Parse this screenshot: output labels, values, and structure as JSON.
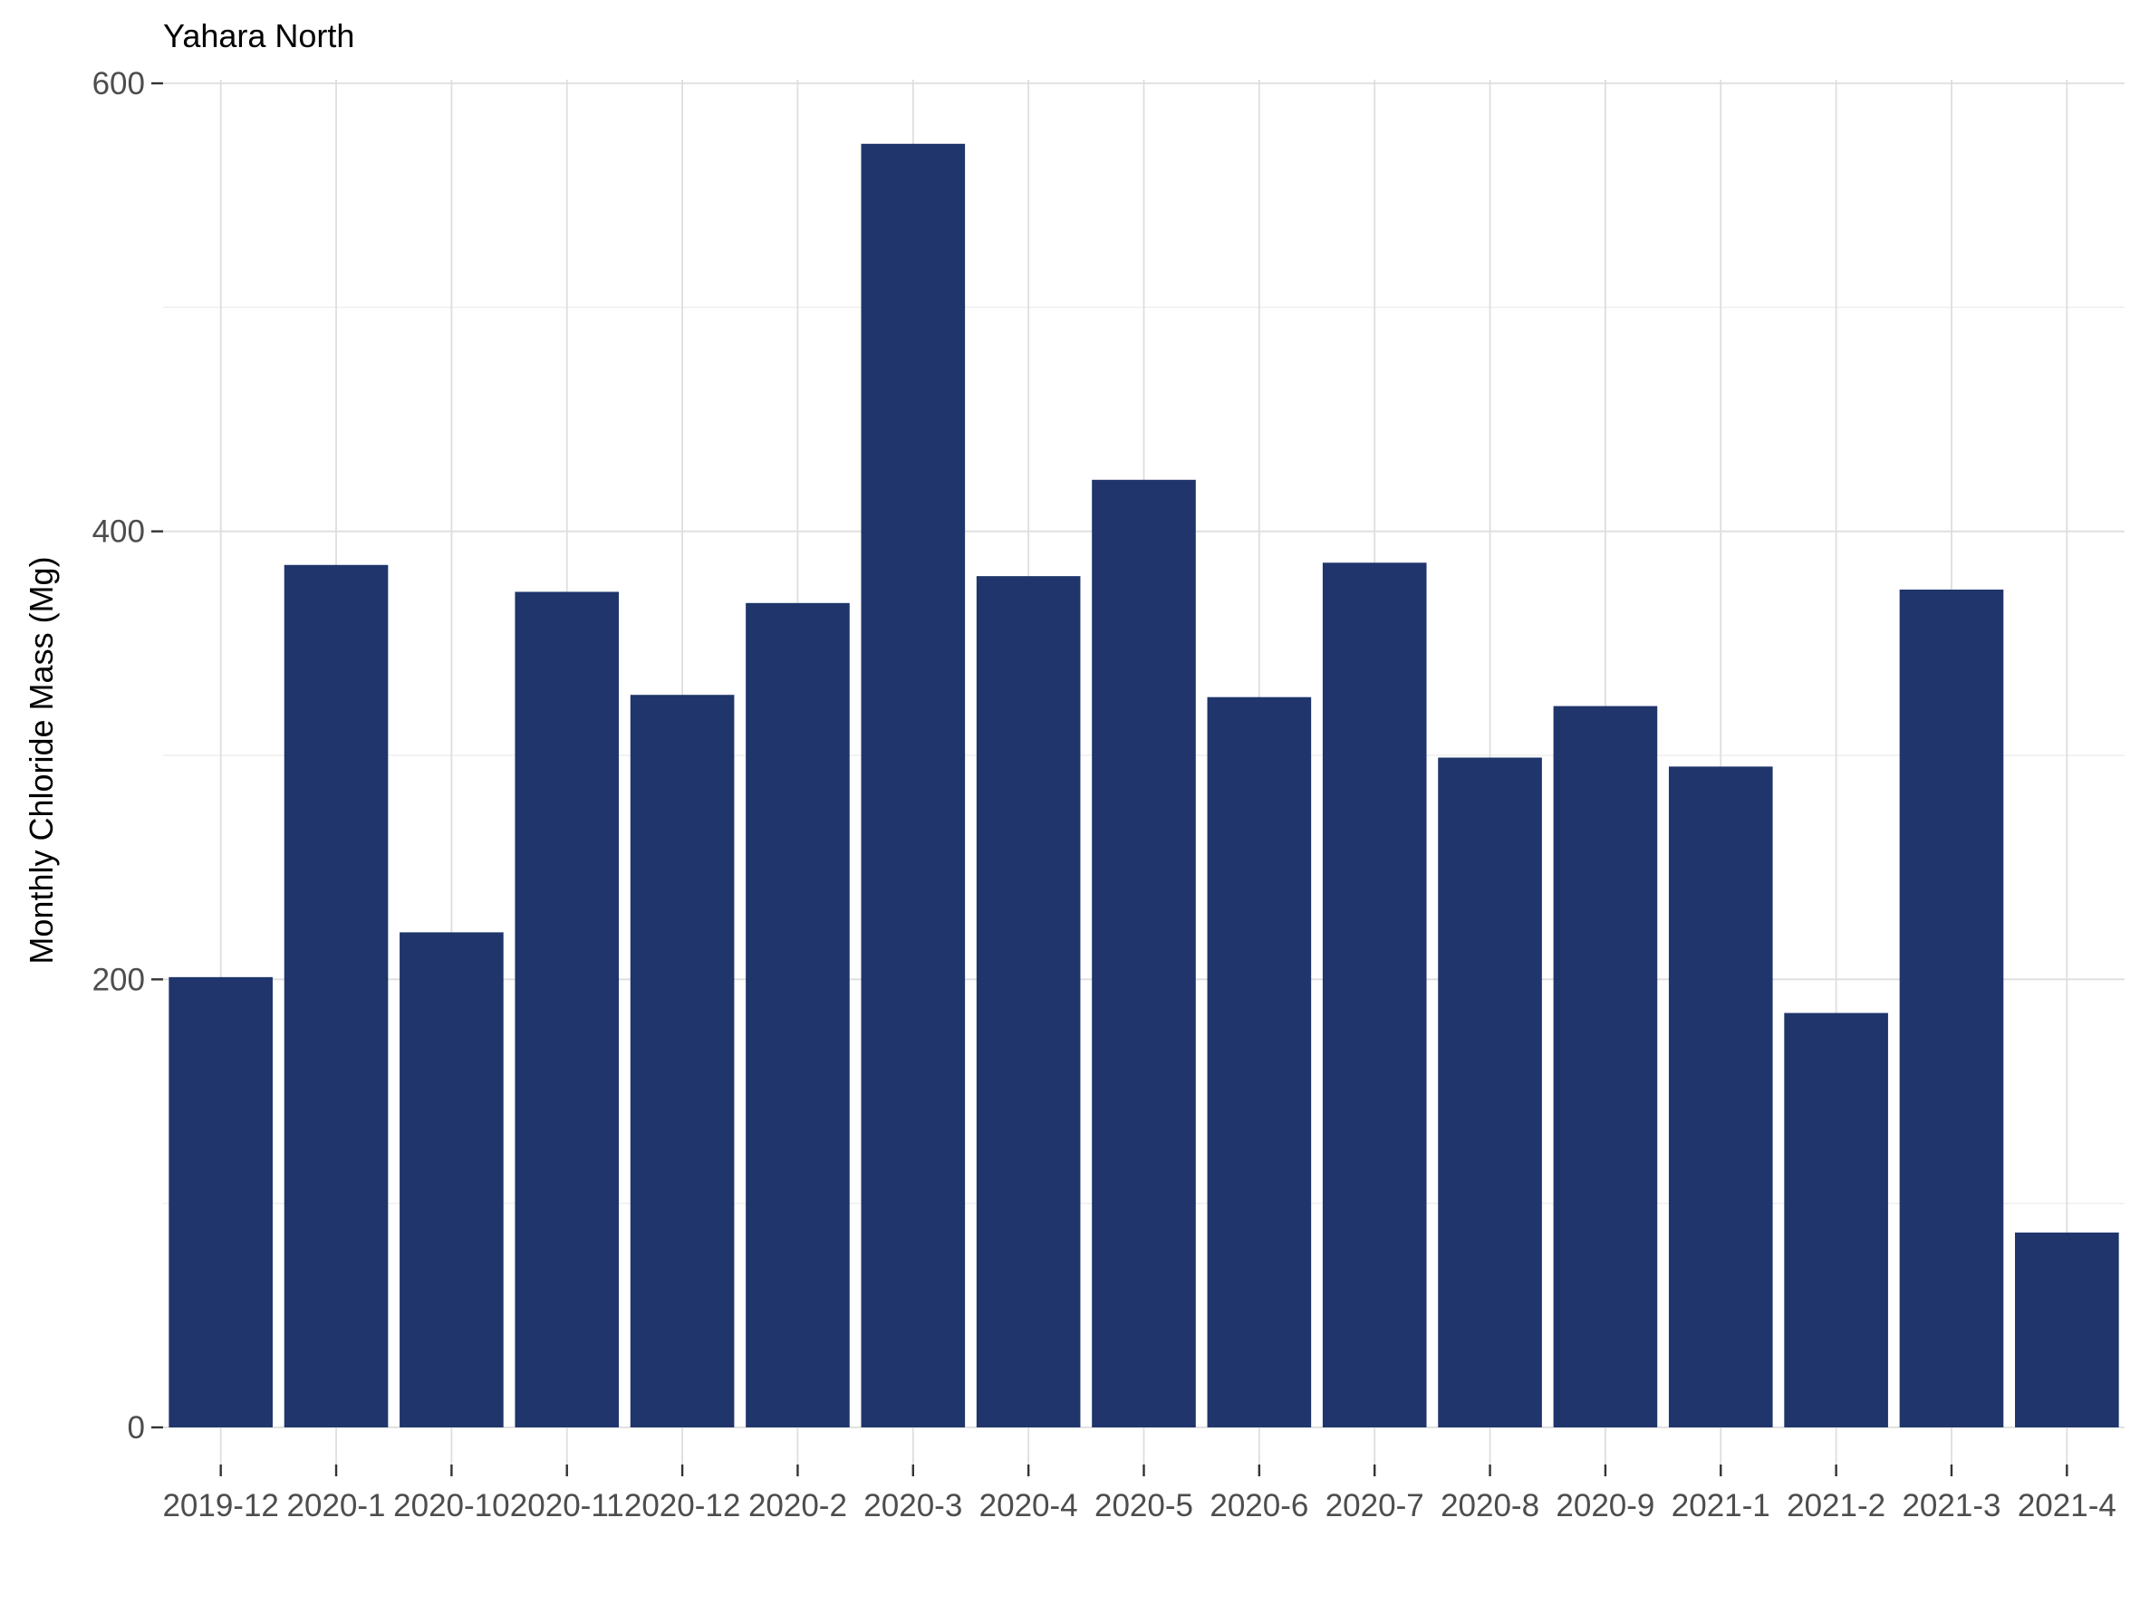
{
  "chart_data": {
    "type": "bar",
    "title": "Yahara North",
    "xlabel": "",
    "ylabel": "Monthly Chloride Mass  (Mg)",
    "categories": [
      "2019-12",
      "2020-1",
      "2020-10",
      "2020-11",
      "2020-12",
      "2020-2",
      "2020-3",
      "2020-4",
      "2020-5",
      "2020-6",
      "2020-7",
      "2020-8",
      "2020-9",
      "2021-1",
      "2021-2",
      "2021-3",
      "2021-4"
    ],
    "values": [
      201,
      385,
      221,
      373,
      327,
      368,
      573,
      380,
      423,
      326,
      386,
      299,
      322,
      295,
      185,
      374,
      87
    ],
    "ylim": [
      -18,
      606
    ],
    "yticks": [
      0,
      200,
      400,
      600
    ],
    "bar_color": "#1f356b",
    "grid": true,
    "legend": "none"
  }
}
